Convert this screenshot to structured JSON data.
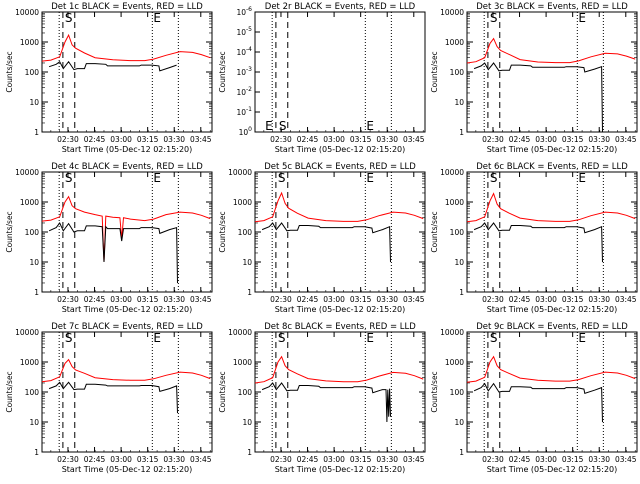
{
  "chart_data": {
    "type": "line",
    "xlabel": "Start Time (05-Dec-12 02:15:20)",
    "ylabel": "Counts/sec",
    "x_ticks": [
      "02:30",
      "02:45",
      "03:00",
      "03:15",
      "03:30",
      "03:45"
    ],
    "y_ticks": [
      "1",
      "10",
      "100",
      "1000",
      "10000"
    ],
    "y_ticks_det2": [
      "10^0",
      "10^-1",
      "10^-2",
      "10^-3",
      "10^-4",
      "10^-5",
      "10^-6"
    ],
    "ylim": [
      1,
      10000
    ],
    "x_range_min": [
      0,
      96
    ],
    "vertical_markers_min": {
      "dashed": [
        11.8,
        18.5
      ],
      "dotted": [
        9.7,
        62.3,
        77.0
      ],
      "letters": [
        "S",
        "E"
      ]
    },
    "panels": [
      {
        "title": "Det 1c BLACK = Events, RED = LLD",
        "series": [
          {
            "color": "#ff0000",
            "x": [
              0,
              5,
              10,
              13,
              15,
              17,
              19,
              24,
              30,
              40,
              50,
              58,
              63,
              70,
              78,
              85,
              90,
              95
            ],
            "y": [
              230,
              250,
              320,
              1000,
              1700,
              800,
              620,
              430,
              300,
              255,
              240,
              240,
              270,
              360,
              480,
              450,
              380,
              300
            ]
          },
          {
            "color": "#000000",
            "x": [
              4,
              8,
              10,
              12,
              15,
              18,
              20,
              24,
              25,
              30,
              36,
              37,
              45,
              55,
              56,
              58,
              62,
              66,
              66.5,
              72,
              76
            ],
            "y": [
              150,
              180,
              220,
              130,
              220,
              120,
              130,
              130,
              190,
              190,
              180,
              160,
              160,
              160,
              170,
              170,
              170,
              160,
              110,
              140,
              170
            ]
          }
        ]
      },
      {
        "title": "Det 2r BLACK = Events, RED = LLD",
        "series": [],
        "markers": [
          "S",
          "E",
          "E"
        ]
      },
      {
        "title": "Det 3c BLACK = Events, RED = LLD",
        "series": [
          {
            "color": "#ff0000",
            "x": [
              0,
              5,
              10,
              13,
              15,
              17,
              19,
              24,
              30,
              40,
              50,
              58,
              63,
              70,
              78,
              85,
              90,
              95
            ],
            "y": [
              200,
              220,
              300,
              900,
              1300,
              700,
              520,
              380,
              260,
              215,
              205,
              205,
              235,
              320,
              420,
              400,
              340,
              270
            ]
          },
          {
            "color": "#000000",
            "x": [
              4,
              8,
              10,
              12,
              15,
              18,
              20,
              24,
              25,
              30,
              36,
              37,
              45,
              55,
              56,
              58,
              62,
              66,
              66.5,
              72,
              76,
              76.5
            ],
            "y": [
              130,
              160,
              200,
              120,
              200,
              110,
              115,
              115,
              170,
              170,
              160,
              145,
              145,
              145,
              150,
              150,
              150,
              140,
              100,
              125,
              150,
              1
            ]
          }
        ]
      },
      {
        "title": "Det 4c BLACK = Events, RED = LLD",
        "series": [
          {
            "color": "#ff0000",
            "x": [
              0,
              5,
              10,
              13,
              15,
              17,
              19,
              24,
              30,
              34,
              35,
              36,
              40,
              44,
              45,
              46,
              50,
              58,
              63,
              70,
              78,
              85,
              90,
              95
            ],
            "y": [
              230,
              250,
              320,
              1000,
              1500,
              750,
              600,
              460,
              380,
              340,
              10,
              340,
              310,
              300,
              60,
              300,
              270,
              240,
              270,
              380,
              460,
              430,
              360,
              280
            ]
          },
          {
            "color": "#000000",
            "x": [
              4,
              8,
              10,
              12,
              15,
              18,
              20,
              24,
              25,
              30,
              34,
              35,
              36,
              37,
              44,
              45,
              46,
              55,
              56,
              58,
              62,
              66,
              66.5,
              72,
              76,
              76.5
            ],
            "y": [
              110,
              140,
              200,
              110,
              190,
              100,
              110,
              110,
              160,
              160,
              150,
              10,
              150,
              130,
              130,
              50,
              130,
              130,
              140,
              140,
              140,
              130,
              90,
              120,
              140,
              2
            ]
          }
        ]
      },
      {
        "title": "Det 5c BLACK = Events, RED = LLD",
        "series": [
          {
            "color": "#ff0000",
            "x": [
              0,
              5,
              10,
              13,
              15,
              17,
              19,
              24,
              30,
              40,
              50,
              58,
              63,
              70,
              78,
              85,
              90,
              95
            ],
            "y": [
              220,
              240,
              320,
              1100,
              2000,
              900,
              620,
              420,
              290,
              240,
              225,
              225,
              255,
              350,
              460,
              430,
              360,
              280
            ]
          },
          {
            "color": "#000000",
            "x": [
              4,
              8,
              10,
              12,
              15,
              18,
              20,
              24,
              25,
              30,
              36,
              37,
              45,
              55,
              56,
              58,
              62,
              66,
              66.5,
              72,
              76,
              76.5
            ],
            "y": [
              120,
              150,
              200,
              120,
              200,
              110,
              115,
              115,
              165,
              165,
              155,
              140,
              140,
              140,
              150,
              150,
              150,
              135,
              95,
              120,
              150,
              10
            ]
          }
        ]
      },
      {
        "title": "Det 6c BLACK = Events, RED = LLD",
        "series": [
          {
            "color": "#ff0000",
            "x": [
              0,
              5,
              10,
              13,
              15,
              17,
              19,
              24,
              30,
              40,
              50,
              58,
              63,
              70,
              78,
              85,
              90,
              95
            ],
            "y": [
              220,
              240,
              320,
              1100,
              1900,
              850,
              600,
              420,
              290,
              240,
              225,
              225,
              255,
              350,
              460,
              430,
              360,
              280
            ]
          },
          {
            "color": "#000000",
            "x": [
              4,
              8,
              10,
              12,
              15,
              18,
              20,
              24,
              25,
              30,
              36,
              37,
              45,
              55,
              56,
              58,
              62,
              66,
              66.5,
              72,
              76,
              76.5
            ],
            "y": [
              120,
              150,
              200,
              120,
              200,
              110,
              115,
              115,
              165,
              165,
              155,
              140,
              140,
              140,
              150,
              150,
              150,
              135,
              95,
              120,
              150,
              10
            ]
          }
        ]
      },
      {
        "title": "Det 7c BLACK = Events, RED = LLD",
        "series": [
          {
            "color": "#ff0000",
            "x": [
              0,
              5,
              10,
              13,
              15,
              17,
              19,
              24,
              30,
              40,
              50,
              58,
              63,
              70,
              78,
              85,
              90,
              95
            ],
            "y": [
              220,
              240,
              320,
              900,
              1200,
              700,
              540,
              420,
              300,
              260,
              245,
              245,
              275,
              360,
              460,
              430,
              360,
              280
            ]
          },
          {
            "color": "#000000",
            "x": [
              4,
              8,
              10,
              12,
              15,
              18,
              20,
              24,
              25,
              30,
              36,
              37,
              45,
              55,
              56,
              58,
              62,
              66,
              66.5,
              72,
              76,
              76.5
            ],
            "y": [
              130,
              160,
              210,
              130,
              210,
              120,
              125,
              125,
              180,
              180,
              170,
              160,
              160,
              160,
              165,
              165,
              165,
              150,
              105,
              130,
              160,
              20
            ]
          }
        ]
      },
      {
        "title": "Det 8c BLACK = Events, RED = LLD",
        "series": [
          {
            "color": "#ff0000",
            "x": [
              0,
              5,
              10,
              13,
              15,
              17,
              19,
              24,
              30,
              40,
              50,
              58,
              63,
              70,
              78,
              85,
              90,
              95
            ],
            "y": [
              200,
              220,
              300,
              1000,
              1500,
              750,
              560,
              400,
              280,
              235,
              220,
              220,
              250,
              340,
              450,
              420,
              350,
              270
            ]
          },
          {
            "color": "#000000",
            "x": [
              4,
              8,
              10,
              12,
              15,
              18,
              20,
              24,
              25,
              30,
              36,
              37,
              45,
              55,
              56,
              58,
              62,
              66,
              66.5,
              72,
              74,
              74.5,
              75,
              75.5,
              76,
              76.5
            ],
            "y": [
              120,
              150,
              200,
              120,
              200,
              110,
              115,
              115,
              165,
              165,
              155,
              140,
              140,
              140,
              150,
              150,
              150,
              135,
              95,
              120,
              120,
              10,
              120,
              15,
              130,
              15
            ]
          }
        ]
      },
      {
        "title": "Det 9c BLACK = Events, RED = LLD",
        "series": [
          {
            "color": "#ff0000",
            "x": [
              0,
              5,
              10,
              13,
              15,
              17,
              19,
              24,
              30,
              40,
              50,
              58,
              63,
              70,
              78,
              85,
              90,
              95
            ],
            "y": [
              210,
              230,
              310,
              1000,
              1500,
              750,
              560,
              410,
              290,
              245,
              230,
              230,
              260,
              350,
              460,
              430,
              360,
              280
            ]
          },
          {
            "color": "#000000",
            "x": [
              4,
              8,
              10,
              12,
              15,
              18,
              20,
              24,
              25,
              30,
              36,
              37,
              45,
              55,
              56,
              58,
              62,
              66,
              66.5,
              72,
              76,
              76.5
            ],
            "y": [
              110,
              140,
              190,
              110,
              190,
              100,
              105,
              105,
              150,
              150,
              145,
              130,
              130,
              130,
              140,
              140,
              140,
              125,
              90,
              115,
              140,
              10
            ]
          }
        ]
      }
    ]
  }
}
